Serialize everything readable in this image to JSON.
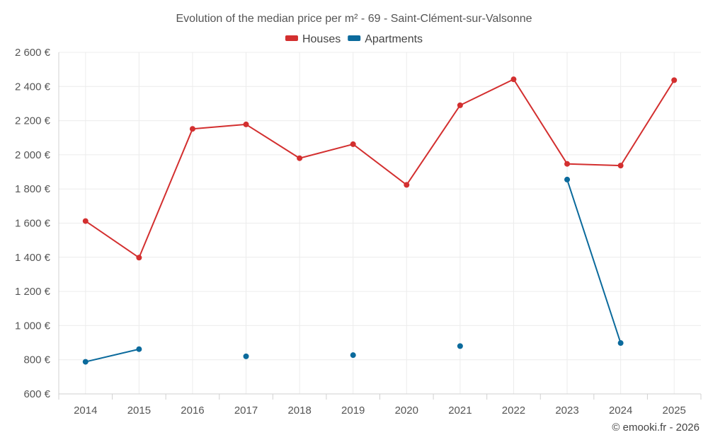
{
  "chart_data": {
    "type": "line",
    "title": "Evolution of the median price per m² - 69 - Saint-Clément-sur-Valsonne",
    "categories": [
      "2014",
      "2015",
      "2016",
      "2017",
      "2018",
      "2019",
      "2020",
      "2021",
      "2022",
      "2023",
      "2024",
      "2025"
    ],
    "series": [
      {
        "name": "Houses",
        "color": "#d32f2f",
        "values": [
          1612,
          1398,
          2152,
          2178,
          1980,
          2062,
          1824,
          2290,
          2442,
          1947,
          1937,
          2437
        ]
      },
      {
        "name": "Apartments",
        "color": "#0b6a9c",
        "values": [
          788,
          862,
          null,
          820,
          null,
          827,
          null,
          880,
          null,
          1855,
          898,
          null
        ]
      }
    ],
    "xlabel": "",
    "ylabel": "",
    "ylim": [
      600,
      2600
    ],
    "y_ticks": [
      600,
      800,
      1000,
      1200,
      1400,
      1600,
      1800,
      2000,
      2200,
      2400,
      2600
    ],
    "y_tick_labels": [
      "600 €",
      "800 €",
      "1 000 €",
      "1 200 €",
      "1 400 €",
      "1 600 €",
      "1 800 €",
      "2 000 €",
      "2 200 €",
      "2 400 €",
      "2 600 €"
    ],
    "grid": true,
    "legend_position": "top-center"
  },
  "footer": {
    "copyright": "© emooki.fr - 2026"
  }
}
